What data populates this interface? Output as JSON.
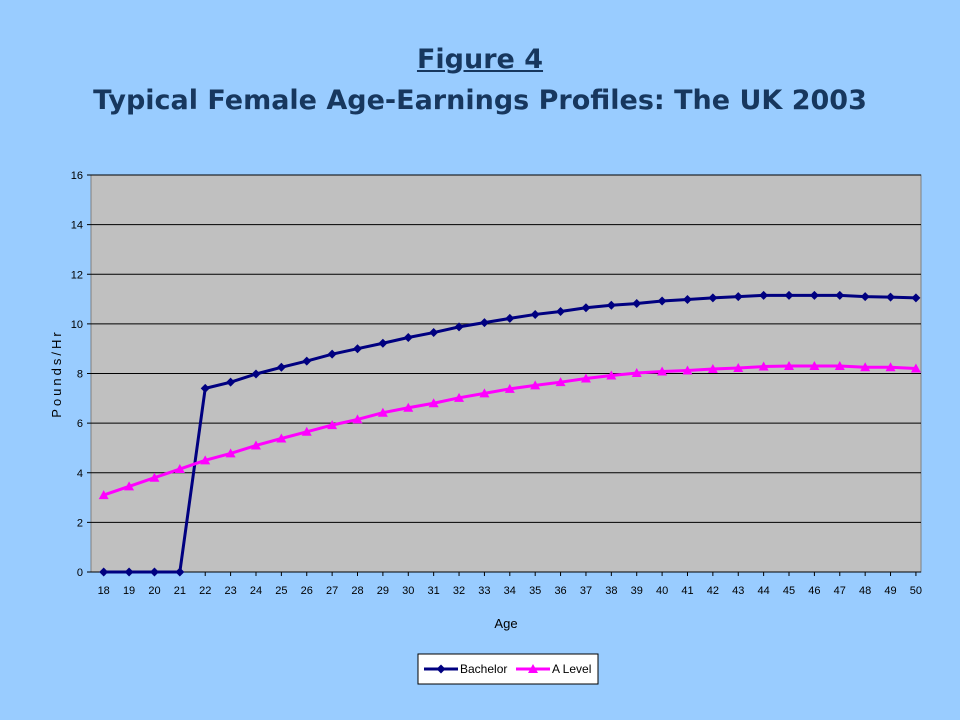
{
  "slide": {
    "title_line1": "Figure 4",
    "title_line2": "Typical Female Age-Earnings Profiles: The UK 2003"
  },
  "colors": {
    "background": "#99ccff",
    "plot_area": "#c0c0c0",
    "title": "#17375e",
    "bachelor": "#000080",
    "alevel": "#ff00ff"
  },
  "chart_data": {
    "type": "line",
    "xlabel": "Age",
    "ylabel": "Pounds/Hr",
    "ylim": [
      0,
      16
    ],
    "yticks": [
      0,
      2,
      4,
      6,
      8,
      10,
      12,
      14,
      16
    ],
    "grid": true,
    "legend_position": "bottom",
    "x": [
      18,
      19,
      20,
      21,
      22,
      23,
      24,
      25,
      26,
      27,
      28,
      29,
      30,
      31,
      32,
      33,
      34,
      35,
      36,
      37,
      38,
      39,
      40,
      41,
      42,
      43,
      44,
      45,
      46,
      47,
      48,
      49,
      50
    ],
    "series": [
      {
        "name": "Bachelor",
        "color": "#000080",
        "marker": "diamond",
        "values": [
          0,
          0,
          0,
          0,
          7.4,
          7.65,
          7.98,
          8.25,
          8.5,
          8.78,
          9.0,
          9.22,
          9.45,
          9.65,
          9.88,
          10.05,
          10.22,
          10.38,
          10.5,
          10.65,
          10.75,
          10.82,
          10.92,
          10.98,
          11.05,
          11.1,
          11.15,
          11.15,
          11.15,
          11.15,
          11.1,
          11.08,
          11.05
        ]
      },
      {
        "name": "A Level",
        "color": "#ff00ff",
        "marker": "triangle",
        "values": [
          3.1,
          3.45,
          3.8,
          4.15,
          4.5,
          4.78,
          5.1,
          5.38,
          5.65,
          5.92,
          6.15,
          6.42,
          6.62,
          6.8,
          7.02,
          7.2,
          7.38,
          7.52,
          7.65,
          7.8,
          7.92,
          8.02,
          8.08,
          8.12,
          8.18,
          8.22,
          8.28,
          8.3,
          8.3,
          8.3,
          8.25,
          8.25,
          8.2
        ]
      }
    ]
  }
}
